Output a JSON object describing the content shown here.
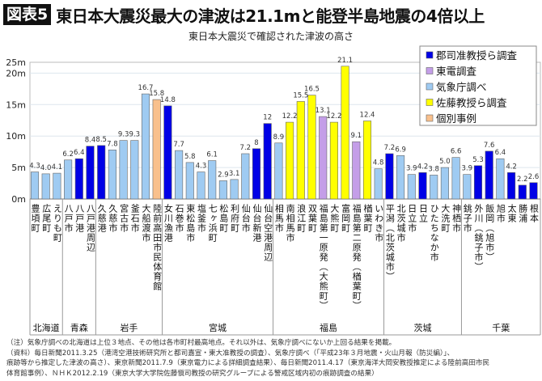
{
  "header": {
    "badge": "図表5",
    "title": "東日本大震災最大の津波は21.1mと能登半島地震の4倍以上"
  },
  "chart_data": {
    "type": "bar",
    "title": "東日本大震災で確認された津波の高さ",
    "ylim": [
      0,
      25
    ],
    "yticks": [
      "0m",
      "5m",
      "10m",
      "15m",
      "20m",
      "25m"
    ],
    "grid": true,
    "legend_position": "top-right",
    "sources": {
      "gunji": {
        "name": "郡司准教授ら調査",
        "color": "#0000e6"
      },
      "tepco": {
        "name": "東電調査",
        "color": "#c49ee8"
      },
      "jma": {
        "name": "気象庁調べ",
        "color": "#9fcbf2"
      },
      "sato": {
        "name": "佐藤教授ら調査",
        "color": "#ffff00"
      },
      "indiv": {
        "name": "個別事例",
        "color": "#f9c08c"
      }
    },
    "legend_order": [
      "gunji",
      "tepco",
      "jma",
      "sato",
      "indiv"
    ],
    "groups": [
      {
        "name": "北海道",
        "bars": [
          [
            "豊頃町",
            4.3,
            "jma",
            "4.3"
          ],
          [
            "広尾町",
            4.0,
            "jma",
            "4.0"
          ],
          [
            "えりも町",
            4.1,
            "jma",
            "4.1"
          ]
        ]
      },
      {
        "name": "青森",
        "bars": [
          [
            "八戸市",
            6.2,
            "jma",
            "6.2"
          ],
          [
            "八戸港",
            6.4,
            "gunji",
            "6.4"
          ],
          [
            "八戸港周辺",
            8.4,
            "gunji",
            "8.4"
          ]
        ]
      },
      {
        "name": "岩手",
        "bars": [
          [
            "久慈港",
            8.5,
            "gunji",
            "8.5"
          ],
          [
            "久慈市",
            7.8,
            "jma",
            "7.8"
          ],
          [
            "宮古市",
            9.3,
            "jma",
            "9.3"
          ],
          [
            "釜石市",
            9.3,
            "jma",
            "9.3"
          ],
          [
            "大船渡市",
            16.7,
            "jma",
            "16.7"
          ],
          [
            "陸前高田市民体育館",
            15.8,
            "indiv",
            "15.8"
          ]
        ]
      },
      {
        "name": "宮城",
        "bars": [
          [
            "女川漁港",
            14.8,
            "gunji",
            "14.8"
          ],
          [
            "石巻市",
            7.7,
            "jma",
            "7.7"
          ],
          [
            "東松島市",
            5.8,
            "jma",
            "5.8"
          ],
          [
            "塩釜市",
            4.3,
            "jma",
            "4.3"
          ],
          [
            "七ヶ浜町",
            6.1,
            "jma",
            "6.1"
          ],
          [
            "松島町",
            2.9,
            "jma",
            "2.9"
          ],
          [
            "利府町",
            3.1,
            "jma",
            "3.1"
          ],
          [
            "仙台市",
            7.2,
            "jma",
            "7.2"
          ],
          [
            "仙台新港",
            8,
            "gunji",
            "8"
          ],
          [
            "仙台空港周辺",
            12,
            "gunji",
            "12"
          ]
        ]
      },
      {
        "name": "福島",
        "bars": [
          [
            "相馬市",
            8.9,
            "jma",
            "8.9"
          ],
          [
            "南相馬市",
            12.2,
            "sato",
            "12.2"
          ],
          [
            "浪江町",
            15.5,
            "sato",
            "15.5"
          ],
          [
            "双葉町",
            16.5,
            "sato",
            "16.5"
          ],
          [
            "福島第一原発（大熊町）",
            13.1,
            "tepco",
            "13.1"
          ],
          [
            "大熊町",
            12.2,
            "sato",
            "12.2"
          ],
          [
            "富岡町",
            21.1,
            "sato",
            "21.1"
          ],
          [
            "福島第二原発（楢葉町）",
            9.1,
            "tepco",
            "9.1"
          ],
          [
            "楢葉町",
            12.4,
            "sato",
            "12.4"
          ],
          [
            "いわき市",
            4.8,
            "jma",
            "4.8"
          ]
        ]
      },
      {
        "name": "茨城",
        "bars": [
          [
            "平潟（北茨城市）",
            7.2,
            "gunji",
            "7.2"
          ],
          [
            "北茨城市",
            6.9,
            "jma",
            "6.9"
          ],
          [
            "日立市",
            3.9,
            "jma",
            "3.9"
          ],
          [
            "日立",
            4.2,
            "gunji",
            "4.2"
          ],
          [
            "ひたちなか市",
            3.8,
            "jma",
            "3.8"
          ],
          [
            "大洗町",
            5.0,
            "jma",
            "5.0"
          ],
          [
            "神栖市",
            6.6,
            "jma",
            "6.6"
          ]
        ]
      },
      {
        "name": "千葉",
        "bars": [
          [
            "銚子市",
            3.9,
            "jma",
            "3.9"
          ],
          [
            "外川（銚子市）",
            5.3,
            "gunji",
            "5.3"
          ],
          [
            "飯岡（旭市）",
            7.6,
            "gunji",
            "7.6"
          ],
          [
            "旭市",
            6.4,
            "jma",
            "6.4"
          ],
          [
            "太東",
            4.2,
            "gunji",
            "4.2"
          ],
          [
            "勝浦",
            2.2,
            "gunji",
            "2.2"
          ],
          [
            "根本",
            2.6,
            "gunji",
            "2.6"
          ]
        ]
      }
    ]
  },
  "notes": [
    "（注）気象庁調べの北海道は上位３地点、その他は各市町村最高地点。それ以外は、気象庁調べにないか上回る結果を掲載。",
    "（資料）毎日新聞2011.3.25（港湾空港技術研究所と都司嘉宣・東大准教授の調査）、気象庁調べ（「平成23年３月地震・火山月報（防災編）」、",
    "痕跡等から推定した津波の高さ）、東京新聞2011.7.9（東京電力による詳細調査結果）、毎日新聞2011.4.17（東京海洋大岡安教授推定による陸前高田市民",
    "体育館事例）、ＮＨＫ2012.2.19（東京大学大学院佐藤愼司教授の研究グループによる警戒区域内初の痕跡調査の結果）"
  ]
}
